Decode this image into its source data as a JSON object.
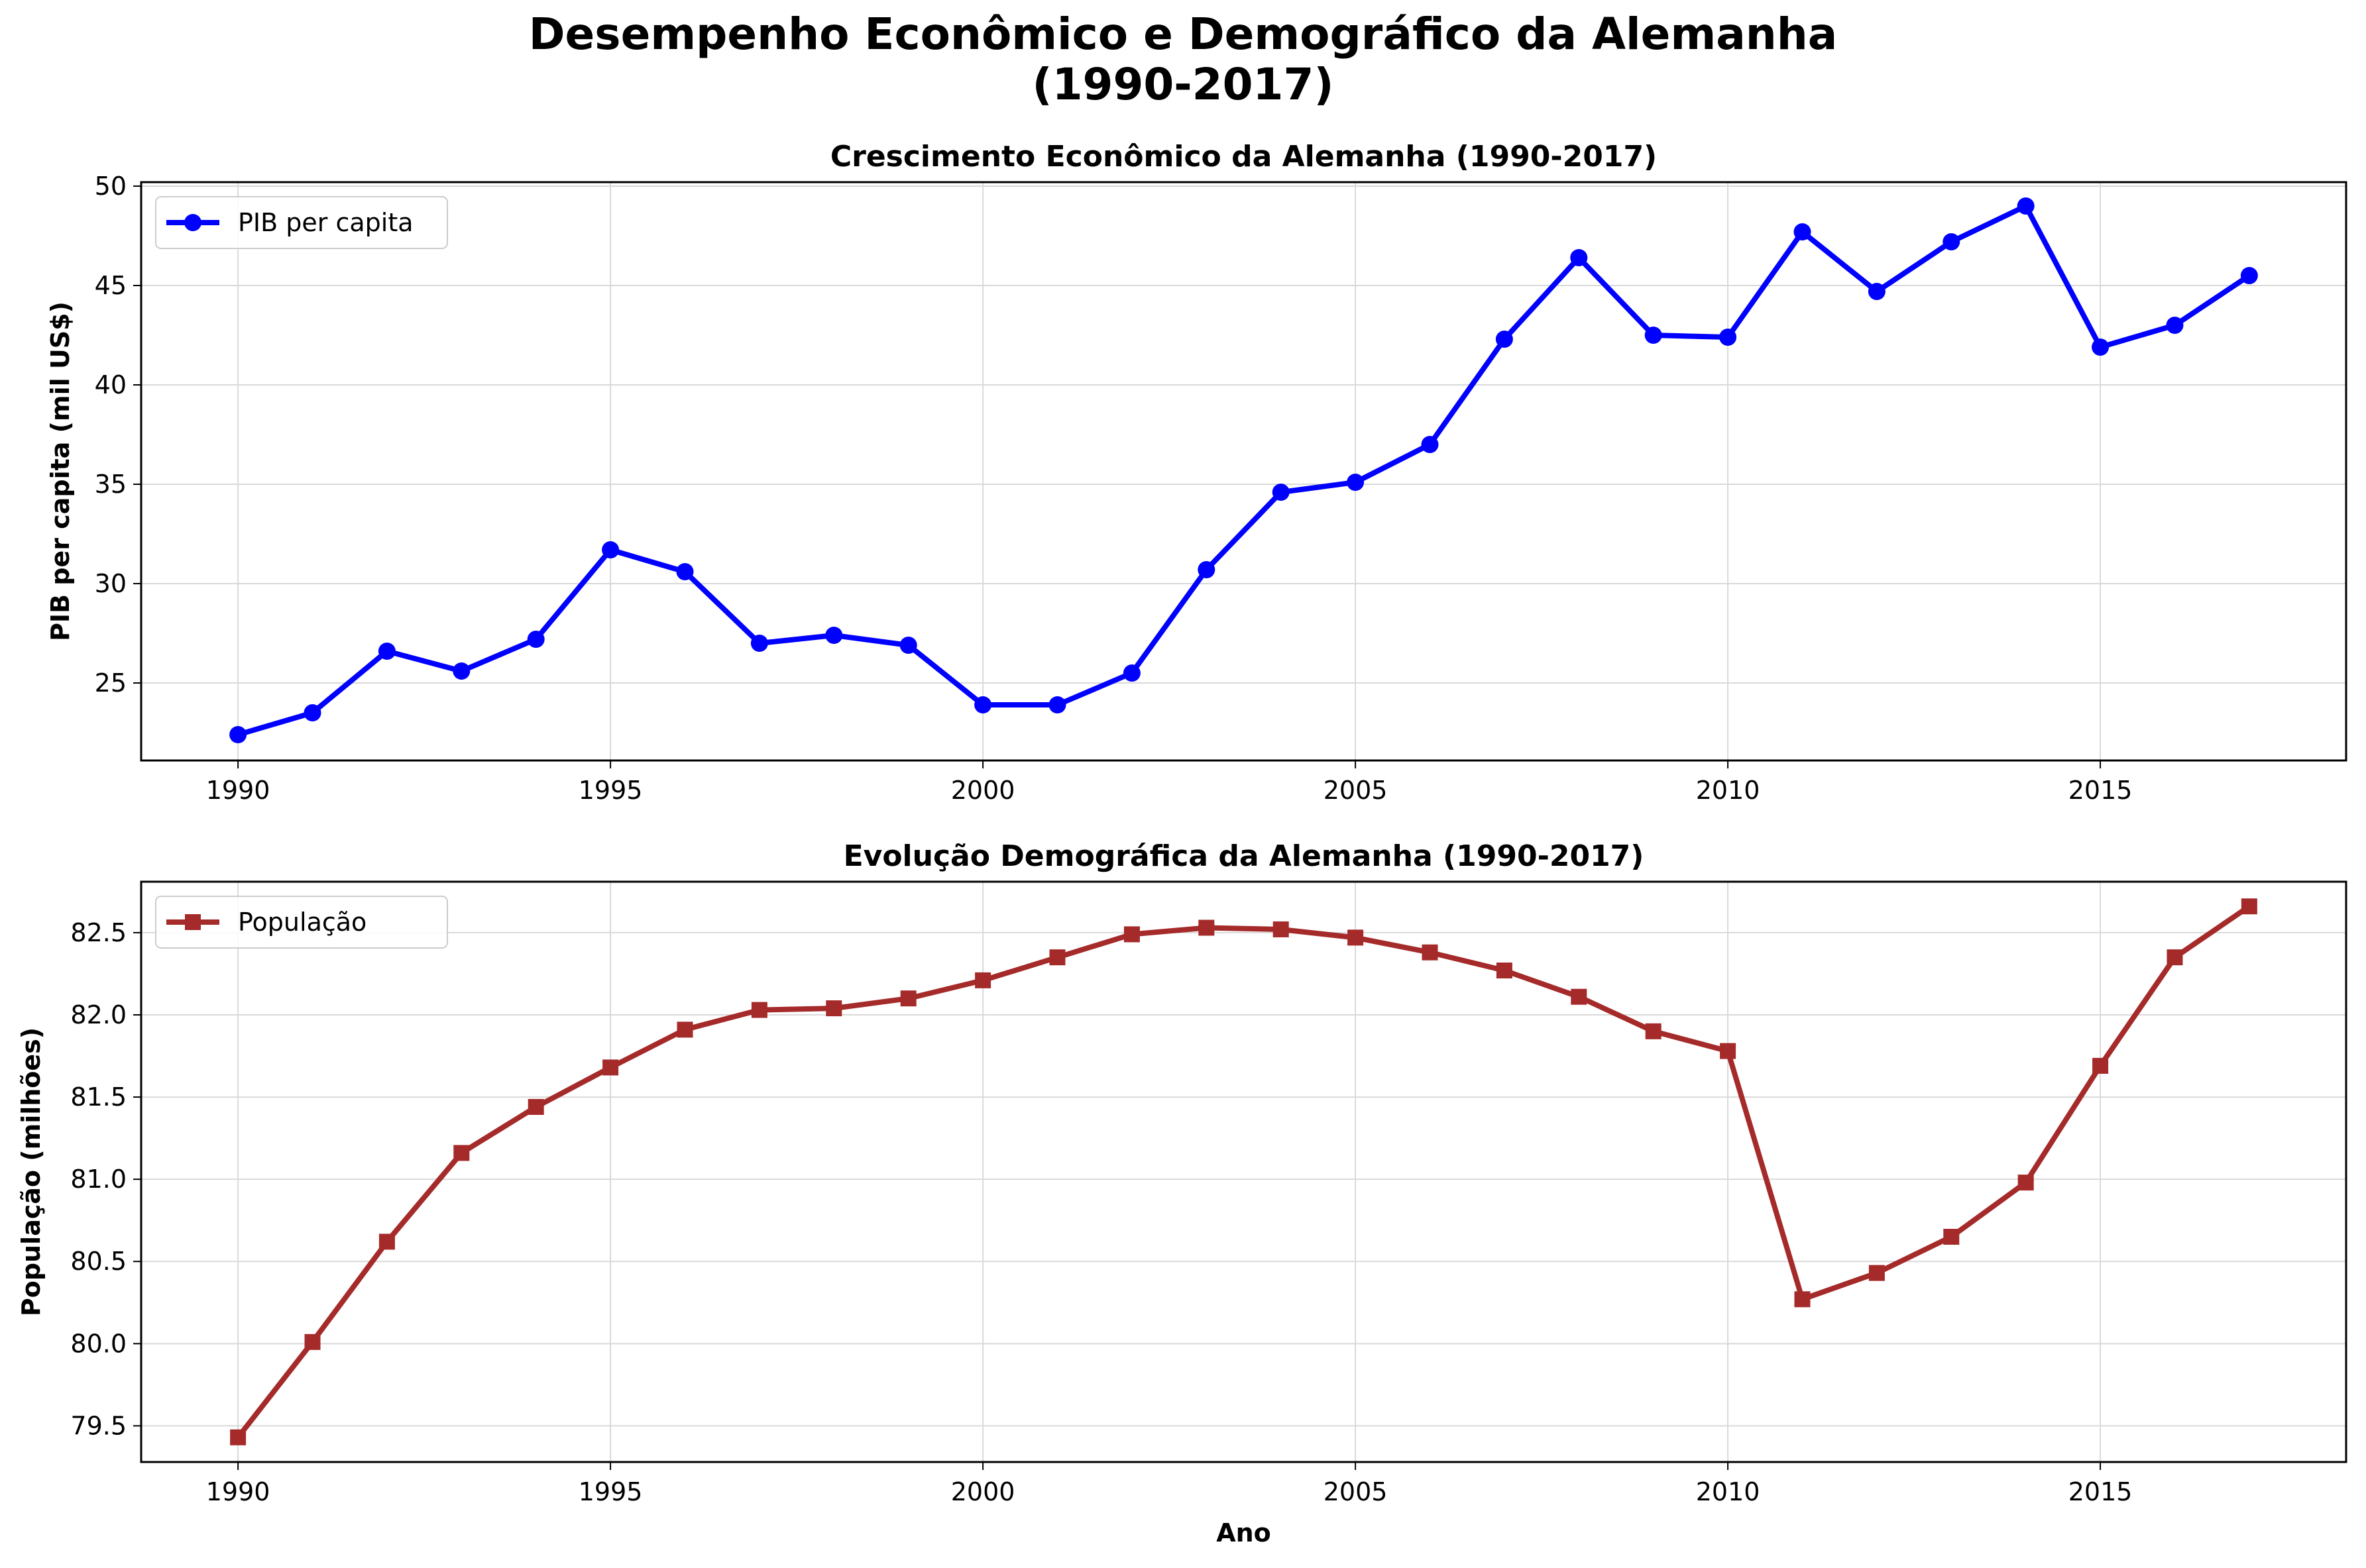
{
  "figure": {
    "title_line1": "Desempenho Econômico e Demográfico da Alemanha",
    "title_line2": "(1990-2017)"
  },
  "chart_data": [
    {
      "type": "line",
      "title": "Crescimento Econômico da Alemanha (1990-2017)",
      "xlabel": "",
      "ylabel": "PIB per capita (mil US$)",
      "xlim": [
        1988.7,
        1978.3
      ],
      "ylim": [
        21.1,
        50.2
      ],
      "xticks": [
        1990,
        1995,
        2000,
        2005,
        2010,
        2015
      ],
      "yticks": [
        25,
        30,
        35,
        40,
        45,
        50
      ],
      "grid": true,
      "legend": "top-left",
      "series": [
        {
          "name": "PIB per capita",
          "color": "#0000ff",
          "marker": "circle",
          "x": [
            1990,
            1991,
            1992,
            1993,
            1994,
            1995,
            1996,
            1997,
            1998,
            1999,
            2000,
            2001,
            2002,
            2003,
            2004,
            2005,
            2006,
            2007,
            2008,
            2009,
            2010,
            2011,
            2012,
            2013,
            2014,
            2015,
            2016,
            2017
          ],
          "y": [
            22.4,
            23.5,
            26.6,
            25.6,
            27.2,
            31.7,
            30.6,
            27.0,
            27.4,
            26.9,
            23.9,
            23.9,
            25.5,
            30.7,
            34.6,
            35.1,
            37.0,
            42.3,
            46.4,
            42.5,
            42.4,
            47.7,
            44.7,
            47.2,
            49.0,
            41.9,
            43.0,
            45.5
          ]
        }
      ]
    },
    {
      "type": "line",
      "title": "Evolução Demográfica da Alemanha (1990-2017)",
      "xlabel": "Ano",
      "ylabel": "População (milhões)",
      "xlim": [
        1988.7,
        2018.3
      ],
      "ylim": [
        79.28,
        82.81
      ],
      "xticks": [
        1990,
        1995,
        2000,
        2005,
        2010,
        2015
      ],
      "yticks": [
        79.5,
        80.0,
        80.5,
        81.0,
        81.5,
        82.0,
        82.5
      ],
      "grid": true,
      "legend": "top-left",
      "series": [
        {
          "name": "População",
          "color": "#a52a2a",
          "marker": "square",
          "x": [
            1990,
            1991,
            1992,
            1993,
            1994,
            1995,
            1996,
            1997,
            1998,
            1999,
            2000,
            2001,
            2002,
            2003,
            2004,
            2005,
            2006,
            2007,
            2008,
            2009,
            2010,
            2011,
            2012,
            2013,
            2014,
            2015,
            2016,
            2017
          ],
          "y": [
            79.43,
            80.01,
            80.62,
            81.16,
            81.44,
            81.68,
            81.91,
            82.03,
            82.04,
            82.1,
            82.21,
            82.35,
            82.49,
            82.53,
            82.52,
            82.47,
            82.38,
            82.27,
            82.11,
            81.9,
            81.78,
            80.27,
            80.43,
            80.65,
            80.98,
            81.69,
            82.35,
            82.66
          ]
        }
      ]
    }
  ]
}
